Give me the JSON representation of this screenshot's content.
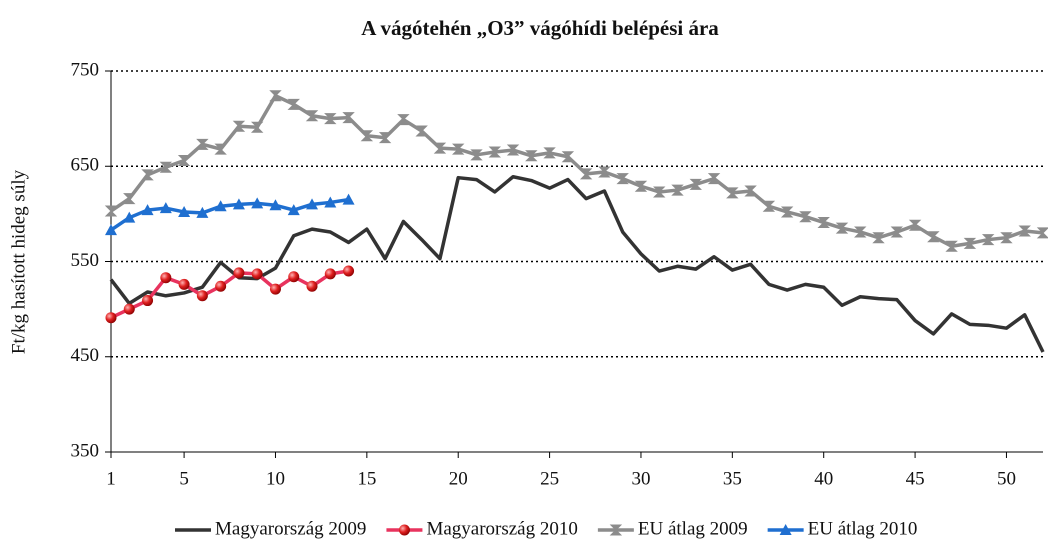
{
  "chart_data": {
    "type": "line",
    "title": "A vágótehén „O3” vágóhídi belépési ára",
    "y_label": "Ft/kg hasított hideg súly",
    "x": [
      1,
      2,
      3,
      4,
      5,
      6,
      7,
      8,
      9,
      10,
      11,
      12,
      13,
      14,
      15,
      16,
      17,
      18,
      19,
      20,
      21,
      22,
      23,
      24,
      25,
      26,
      27,
      28,
      29,
      30,
      31,
      32,
      33,
      34,
      35,
      36,
      37,
      38,
      39,
      40,
      41,
      42,
      43,
      44,
      45,
      46,
      47,
      48,
      49,
      50,
      51,
      52
    ],
    "xlim": [
      1,
      52
    ],
    "xticks": [
      1,
      5,
      10,
      15,
      20,
      25,
      30,
      35,
      40,
      45,
      50
    ],
    "ylim": [
      350,
      750
    ],
    "yticks": [
      350,
      450,
      550,
      650,
      750
    ],
    "grid": true,
    "legend": "bottom",
    "series": [
      {
        "name": "Magyarország 2009",
        "color": "#333333",
        "marker": "none",
        "values": [
          531,
          506,
          518,
          514,
          517,
          523,
          549,
          533,
          532,
          543,
          577,
          584,
          581,
          570,
          584,
          553,
          592,
          573,
          553,
          638,
          636,
          623,
          639,
          635,
          627,
          636,
          616,
          624,
          581,
          558,
          540,
          545,
          542,
          555,
          541,
          547,
          526,
          520,
          526,
          523,
          504,
          513,
          511,
          510,
          488,
          474,
          495,
          484,
          483,
          480,
          494,
          455
        ]
      },
      {
        "name": "Magyarország 2010",
        "color": "#e8335e",
        "marker": "circle",
        "values": [
          491,
          500,
          509,
          533,
          526,
          514,
          524,
          538,
          537,
          521,
          534,
          524,
          537,
          540,
          null,
          null,
          null,
          null,
          null,
          null,
          null,
          null,
          null,
          null,
          null,
          null,
          null,
          null,
          null,
          null,
          null,
          null,
          null,
          null,
          null,
          null,
          null,
          null,
          null,
          null,
          null,
          null,
          null,
          null,
          null,
          null,
          null,
          null,
          null,
          null,
          null,
          null
        ]
      },
      {
        "name": "EU átlag 2009",
        "color": "#8c8c8c",
        "marker": "hourglass",
        "values": [
          603,
          616,
          641,
          649,
          656,
          673,
          668,
          692,
          691,
          724,
          715,
          703,
          700,
          701,
          682,
          680,
          699,
          687,
          669,
          668,
          662,
          665,
          667,
          661,
          664,
          660,
          642,
          644,
          637,
          629,
          623,
          625,
          631,
          637,
          622,
          624,
          608,
          602,
          597,
          591,
          585,
          581,
          575,
          581,
          588,
          576,
          566,
          569,
          573,
          575,
          582,
          580
        ]
      },
      {
        "name": "EU átlag 2010",
        "color": "#1f6fd0",
        "marker": "triangle",
        "values": [
          583,
          596,
          604,
          606,
          602,
          601,
          608,
          610,
          611,
          609,
          604,
          610,
          612,
          615,
          null,
          null,
          null,
          null,
          null,
          null,
          null,
          null,
          null,
          null,
          null,
          null,
          null,
          null,
          null,
          null,
          null,
          null,
          null,
          null,
          null,
          null,
          null,
          null,
          null,
          null,
          null,
          null,
          null,
          null,
          null,
          null,
          null,
          null,
          null,
          null,
          null,
          null
        ]
      }
    ]
  }
}
